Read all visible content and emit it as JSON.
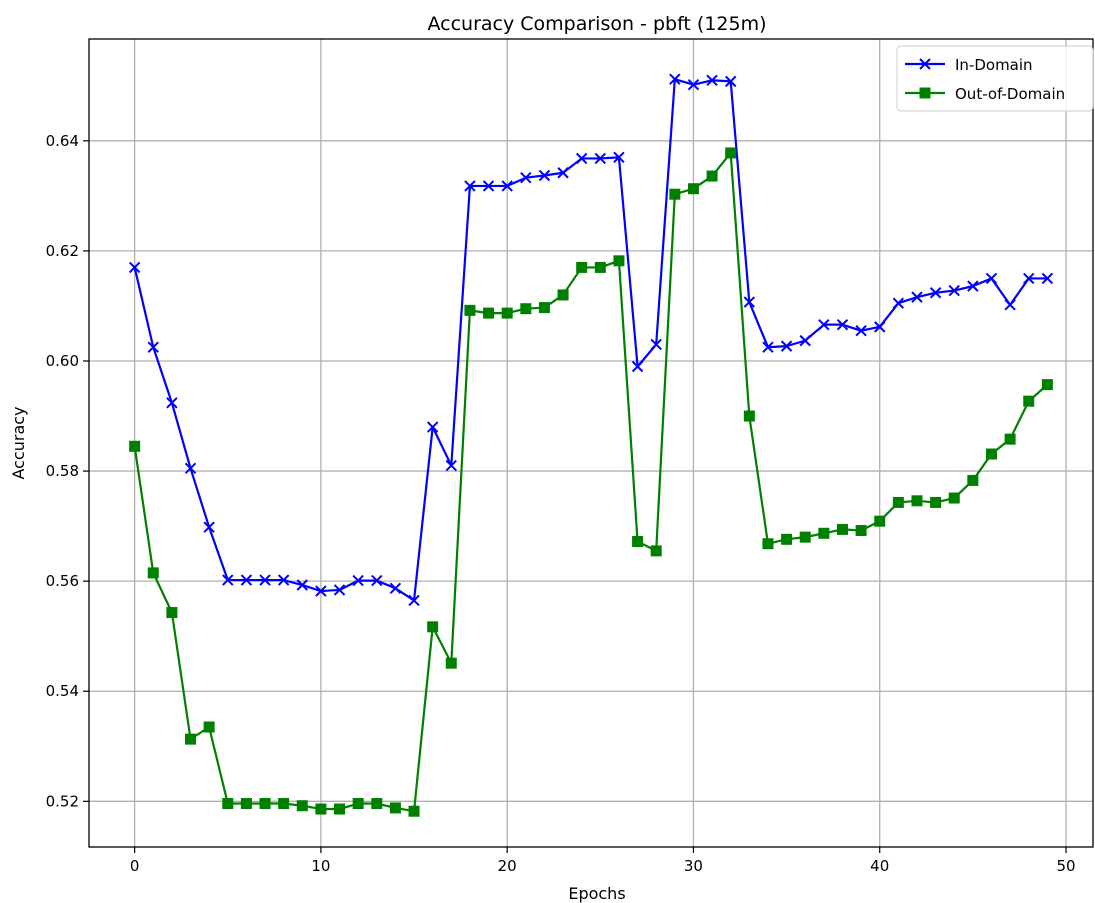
{
  "chart_data": {
    "type": "line",
    "title": "Accuracy Comparison - pbft (125m)",
    "xlabel": "Epochs",
    "ylabel": "Accuracy",
    "xlim": [
      -2.45,
      51.45
    ],
    "ylim": [
      0.5117,
      0.6585
    ],
    "xticks": [
      0,
      10,
      20,
      30,
      40,
      50
    ],
    "yticks": [
      0.52,
      0.54,
      0.56,
      0.58,
      0.6,
      0.62,
      0.64
    ],
    "ytick_labels": [
      "0.52",
      "0.54",
      "0.56",
      "0.58",
      "0.60",
      "0.62",
      "0.64"
    ],
    "grid": true,
    "legend_position": "top-right",
    "x": [
      0,
      1,
      2,
      3,
      4,
      5,
      6,
      7,
      8,
      9,
      10,
      11,
      12,
      13,
      14,
      15,
      16,
      17,
      18,
      19,
      20,
      21,
      22,
      23,
      24,
      25,
      26,
      27,
      28,
      29,
      30,
      31,
      32,
      33,
      34,
      35,
      36,
      37,
      38,
      39,
      40,
      41,
      42,
      43,
      44,
      45,
      46,
      47,
      48,
      49
    ],
    "series": [
      {
        "name": "In-Domain",
        "color": "#0000ff",
        "marker": "x",
        "values": [
          0.617,
          0.6025,
          0.5924,
          0.5805,
          0.5698,
          0.5602,
          0.5602,
          0.5602,
          0.5602,
          0.5593,
          0.5582,
          0.5584,
          0.5601,
          0.5601,
          0.5587,
          0.5565,
          0.588,
          0.581,
          0.6318,
          0.6318,
          0.6318,
          0.6333,
          0.6337,
          0.6342,
          0.6368,
          0.6368,
          0.637,
          0.599,
          0.603,
          0.6512,
          0.6502,
          0.651,
          0.6508,
          0.6107,
          0.6025,
          0.6027,
          0.6037,
          0.6066,
          0.6066,
          0.6055,
          0.6062,
          0.6105,
          0.6116,
          0.6124,
          0.6128,
          0.6136,
          0.615,
          0.6102,
          0.615,
          0.615
        ]
      },
      {
        "name": "Out-of-Domain",
        "color": "#008000",
        "marker": "square",
        "values": [
          0.5845,
          0.5615,
          0.5543,
          0.5313,
          0.5335,
          0.5196,
          0.5196,
          0.5196,
          0.5196,
          0.5192,
          0.5186,
          0.5186,
          0.5196,
          0.5196,
          0.5188,
          0.5182,
          0.5517,
          0.5451,
          0.6092,
          0.6087,
          0.6087,
          0.6095,
          0.6097,
          0.612,
          0.617,
          0.617,
          0.6182,
          0.5672,
          0.5655,
          0.6303,
          0.6313,
          0.6336,
          0.6378,
          0.59,
          0.5668,
          0.5676,
          0.568,
          0.5687,
          0.5694,
          0.5692,
          0.5709,
          0.5743,
          0.5746,
          0.5743,
          0.5751,
          0.5783,
          0.5831,
          0.5858,
          0.5927,
          0.5957
        ]
      }
    ]
  }
}
